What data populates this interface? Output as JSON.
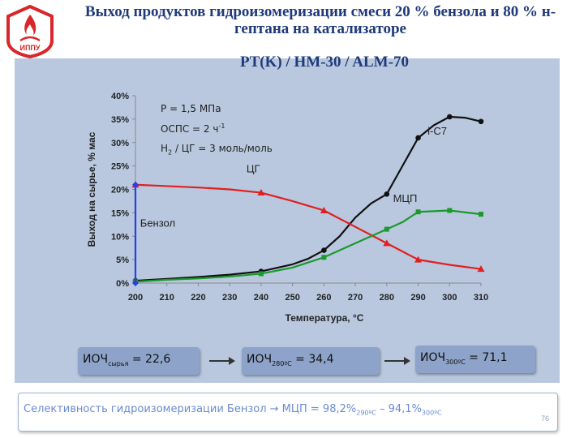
{
  "header": {
    "title": "Выход продуктов гидроизомеризации смеси 20 % бензола и 80 % н-гептана на катализаторе",
    "subtitle": "PT(K) / HM-30 / ALM-70",
    "logo_text": "ИППУ"
  },
  "conditions": {
    "pressure": "P = 1,5 МПа",
    "lhsv_main": "ОСПС = 2 ч",
    "lhsv_sup": "-1",
    "h2_pre": "H",
    "h2_sub": "2",
    "h2_rest": " / ЦГ = 3 моль/моль"
  },
  "ron": {
    "feed_main": "ИОЧ",
    "feed_sub": "сырья",
    "feed_value": " = 22,6",
    "t280_main": "ИОЧ",
    "t280_sub": "280ºС",
    "t280_value": " = 34,4",
    "t300_main": "ИОЧ",
    "t300_sub": "300ºС",
    "t300_value": " = 71,1"
  },
  "selectivity": {
    "text": "Селективность гидроизомеризации Бензол → МЦП = 98,2%",
    "sub1": "290ºС",
    "mid": " – 94,1%",
    "sub2": "300ºС"
  },
  "page_number": "76",
  "chart_data": {
    "type": "line",
    "xlabel": "Температура, °C",
    "ylabel": "Выход на сырье, % мас",
    "x": [
      200,
      210,
      220,
      230,
      240,
      250,
      260,
      270,
      280,
      290,
      300,
      310
    ],
    "x_ticks": [
      "200",
      "210",
      "220",
      "230",
      "240",
      "250",
      "260",
      "270",
      "280",
      "290",
      "300",
      "310"
    ],
    "y_ticks": [
      "0%",
      "5%",
      "10%",
      "15%",
      "20%",
      "25%",
      "30%",
      "35%",
      "40%"
    ],
    "ylim": [
      0,
      40
    ],
    "xlim": [
      200,
      310
    ],
    "grid": false,
    "colors": {
      "i-C7": "#111111",
      "ЦГ": "#e02020",
      "МЦП": "#1a9a2a",
      "Бензол": "#2a3fe0"
    },
    "series": [
      {
        "name": "i-C7",
        "label": "i-C7",
        "markers": [
          [
            200,
            0.5
          ],
          [
            240,
            2.5
          ],
          [
            260,
            7
          ],
          [
            280,
            19
          ],
          [
            290,
            31
          ],
          [
            300,
            35.5
          ],
          [
            310,
            34.5
          ]
        ],
        "curve": [
          [
            200,
            0.5
          ],
          [
            210,
            0.9
          ],
          [
            220,
            1.3
          ],
          [
            230,
            1.8
          ],
          [
            240,
            2.5
          ],
          [
            250,
            4
          ],
          [
            255,
            5.2
          ],
          [
            260,
            7
          ],
          [
            265,
            10
          ],
          [
            270,
            14
          ],
          [
            275,
            17
          ],
          [
            280,
            19
          ],
          [
            285,
            25
          ],
          [
            290,
            31
          ],
          [
            295,
            33.7
          ],
          [
            300,
            35.5
          ],
          [
            305,
            35.3
          ],
          [
            310,
            34.5
          ]
        ]
      },
      {
        "name": "ЦГ",
        "label": "ЦГ",
        "markers": [
          [
            200,
            21
          ],
          [
            240,
            19.3
          ],
          [
            260,
            15.5
          ],
          [
            280,
            8.5
          ],
          [
            290,
            5
          ],
          [
            310,
            3
          ]
        ],
        "curve": [
          [
            200,
            21
          ],
          [
            210,
            20.7
          ],
          [
            220,
            20.4
          ],
          [
            230,
            20
          ],
          [
            240,
            19.3
          ],
          [
            250,
            17.5
          ],
          [
            260,
            15.5
          ],
          [
            270,
            12
          ],
          [
            280,
            8.5
          ],
          [
            290,
            5
          ],
          [
            300,
            3.9
          ],
          [
            310,
            3
          ]
        ]
      },
      {
        "name": "МЦП",
        "label": "МЦП",
        "markers": [
          [
            200,
            0.3
          ],
          [
            240,
            2
          ],
          [
            260,
            5.5
          ],
          [
            280,
            11.5
          ],
          [
            290,
            15.2
          ],
          [
            300,
            15.5
          ],
          [
            310,
            14.7
          ]
        ],
        "curve": [
          [
            200,
            0.3
          ],
          [
            210,
            0.7
          ],
          [
            220,
            1
          ],
          [
            230,
            1.4
          ],
          [
            240,
            2
          ],
          [
            250,
            3.3
          ],
          [
            260,
            5.5
          ],
          [
            270,
            8.5
          ],
          [
            280,
            11.5
          ],
          [
            285,
            13
          ],
          [
            290,
            15.2
          ],
          [
            300,
            15.5
          ],
          [
            310,
            14.7
          ]
        ]
      },
      {
        "name": "Бензол",
        "label": "Бензол",
        "markers": [
          [
            200,
            21
          ],
          [
            200,
            0
          ]
        ],
        "curve": [
          [
            200,
            21
          ],
          [
            200,
            0
          ]
        ]
      }
    ]
  }
}
